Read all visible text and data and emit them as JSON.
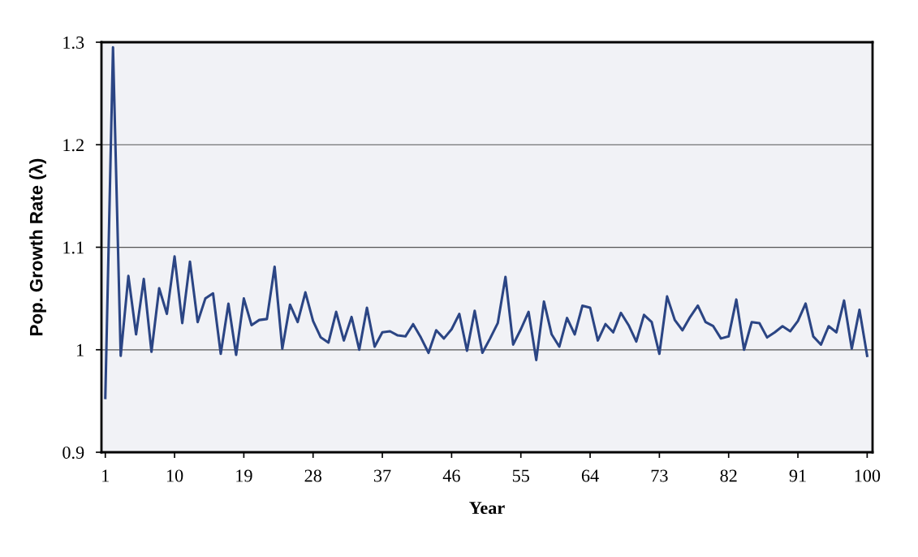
{
  "chart_data": {
    "type": "line",
    "xlabel": "Year",
    "ylabel": "Pop. Growth Rate (λ)",
    "x": [
      1,
      2,
      3,
      4,
      5,
      6,
      7,
      8,
      9,
      10,
      11,
      12,
      13,
      14,
      15,
      16,
      17,
      18,
      19,
      20,
      21,
      22,
      23,
      24,
      25,
      26,
      27,
      28,
      29,
      30,
      31,
      32,
      33,
      34,
      35,
      36,
      37,
      38,
      39,
      40,
      41,
      42,
      43,
      44,
      45,
      46,
      47,
      48,
      49,
      50,
      51,
      52,
      53,
      54,
      55,
      56,
      57,
      58,
      59,
      60,
      61,
      62,
      63,
      64,
      65,
      66,
      67,
      68,
      69,
      70,
      71,
      72,
      73,
      74,
      75,
      76,
      77,
      78,
      79,
      80,
      81,
      82,
      83,
      84,
      85,
      86,
      87,
      88,
      89,
      90,
      91,
      92,
      93,
      94,
      95,
      96,
      97,
      98,
      99,
      100
    ],
    "series": [
      {
        "color": "#2b4584",
        "values": [
          0.953,
          1.295,
          0.994,
          1.072,
          1.015,
          1.069,
          0.998,
          1.06,
          1.035,
          1.091,
          1.026,
          1.086,
          1.027,
          1.05,
          1.055,
          0.996,
          1.045,
          0.995,
          1.05,
          1.024,
          1.029,
          1.03,
          1.081,
          1.001,
          1.044,
          1.027,
          1.056,
          1.028,
          1.012,
          1.007,
          1.037,
          1.009,
          1.032,
          1.0,
          1.041,
          1.003,
          1.017,
          1.018,
          1.014,
          1.013,
          1.025,
          1.012,
          0.997,
          1.019,
          1.011,
          1.02,
          1.035,
          0.999,
          1.038,
          0.997,
          1.011,
          1.026,
          1.071,
          1.005,
          1.02,
          1.037,
          0.99,
          1.047,
          1.015,
          1.003,
          1.031,
          1.015,
          1.043,
          1.041,
          1.009,
          1.025,
          1.017,
          1.036,
          1.024,
          1.008,
          1.034,
          1.027,
          0.996,
          1.052,
          1.029,
          1.019,
          1.032,
          1.043,
          1.027,
          1.023,
          1.011,
          1.013,
          1.049,
          1.0,
          1.027,
          1.026,
          1.012,
          1.017,
          1.023,
          1.018,
          1.028,
          1.045,
          1.013,
          1.005,
          1.023,
          1.017,
          1.048,
          1.001,
          1.039,
          0.994
        ]
      }
    ],
    "xlim": [
      0.5,
      100.7
    ],
    "xticks": [
      1,
      10,
      19,
      28,
      37,
      46,
      55,
      64,
      73,
      82,
      91,
      100
    ],
    "ylim": [
      0.9,
      1.3
    ],
    "yticks": [
      0.9,
      1,
      1.1,
      1.2,
      1.3
    ],
    "grid": "y",
    "marker": "none",
    "line_style": "solid",
    "legend": false
  }
}
